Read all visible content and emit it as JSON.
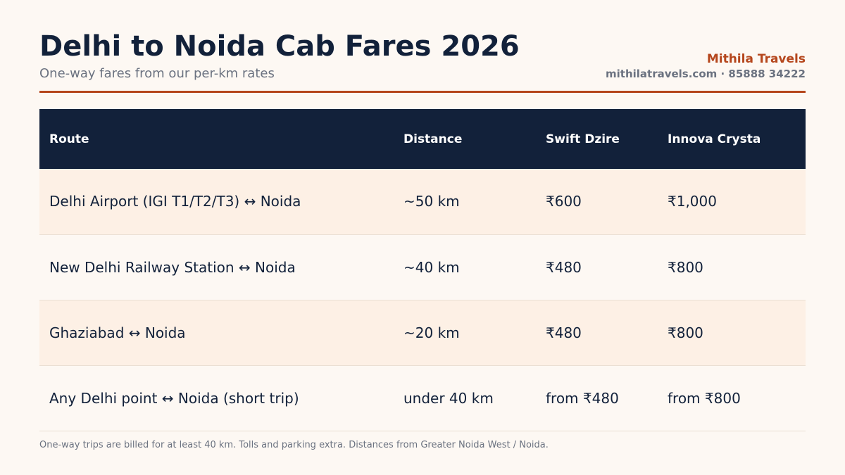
{
  "header": {
    "title": "Delhi to Noida Cab Fares 2026",
    "subtitle": "One-way fares from our per-km rates",
    "brand_name": "Mithila Travels",
    "brand_contact": "mithilatravels.com · 85888 34222"
  },
  "table": {
    "columns": [
      "Route",
      "Distance",
      "Swift Dzire",
      "Innova Crysta"
    ],
    "rows": [
      [
        "Delhi Airport (IGI T1/T2/T3) ↔ Noida",
        "~50 km",
        "₹600",
        "₹1,000"
      ],
      [
        "New Delhi Railway Station ↔ Noida",
        "~40 km",
        "₹480",
        "₹800"
      ],
      [
        "Ghaziabad ↔ Noida",
        "~20 km",
        "₹480",
        "₹800"
      ],
      [
        "Any Delhi point ↔ Noida (short trip)",
        "under 40 km",
        "from ₹480",
        "from ₹800"
      ]
    ]
  },
  "footnote": "One-way trips are billed for at least 40 km. Tolls and parking extra. Distances from Greater Noida West / Noida.",
  "colors": {
    "primary": "#12213a",
    "accent": "#b5461c",
    "background": "#fdf8f3",
    "row_highlight": "#fdf0e5",
    "muted": "#6b7280"
  }
}
